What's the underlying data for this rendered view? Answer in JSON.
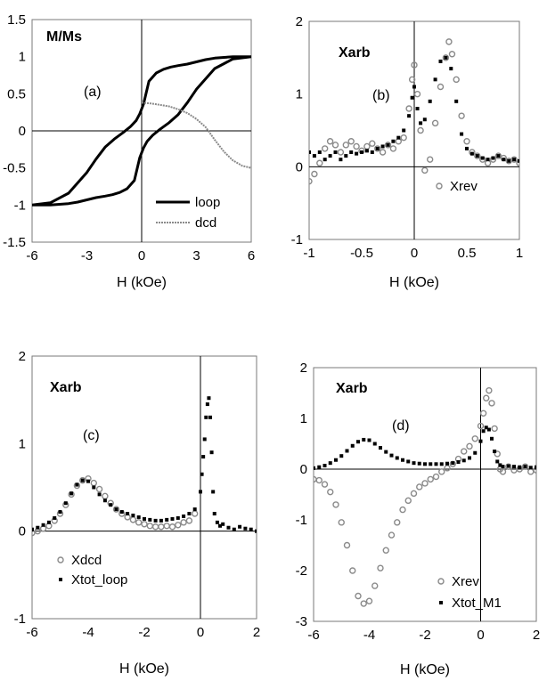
{
  "colors": {
    "dark": "#000000",
    "light": "#8a8a8a",
    "background": "#ffffff"
  },
  "chart_data": [
    {
      "id": "a",
      "type": "line",
      "panel_label": "(a)",
      "ylabel": "M/Ms",
      "xlabel": "H (kOe)",
      "xlim": [
        -6,
        6
      ],
      "ylim": [
        -1.5,
        1.5
      ],
      "xticks": [
        -6,
        -3,
        0,
        3,
        6
      ],
      "yticks": [
        -1.5,
        -1,
        -0.5,
        0,
        0.5,
        1,
        1.5
      ],
      "grid": false,
      "legend_position": "bottom-right",
      "series": [
        {
          "name": "loop",
          "style": "line-dark",
          "x": [
            -6,
            -5,
            -4,
            -3,
            -2.5,
            -2,
            -1.5,
            -1,
            -0.6,
            -0.3,
            -0.1,
            0.1,
            0.4,
            0.8,
            1.2,
            1.6,
            2,
            2.5,
            3,
            3.5,
            4,
            4.5,
            5,
            5.5,
            6,
            5,
            4,
            3,
            2.5,
            2,
            1.5,
            1,
            0.6,
            0.3,
            0.1,
            -0.1,
            -0.4,
            -0.8,
            -1.2,
            -1.6,
            -2,
            -2.5,
            -3,
            -3.5,
            -4,
            -4.5,
            -5,
            -5.5,
            -6
          ],
          "y": [
            -1,
            -0.97,
            -0.84,
            -0.56,
            -0.38,
            -0.22,
            -0.11,
            -0.02,
            0.06,
            0.14,
            0.23,
            0.36,
            0.67,
            0.78,
            0.83,
            0.86,
            0.88,
            0.9,
            0.93,
            0.96,
            0.98,
            0.99,
            1,
            1,
            1,
            0.97,
            0.84,
            0.56,
            0.38,
            0.22,
            0.11,
            0.02,
            -0.06,
            -0.14,
            -0.23,
            -0.36,
            -0.67,
            -0.78,
            -0.83,
            -0.86,
            -0.88,
            -0.9,
            -0.93,
            -0.96,
            -0.98,
            -0.99,
            -1,
            -1,
            -1
          ]
        },
        {
          "name": "dcd",
          "style": "line-light",
          "x": [
            0,
            0.5,
            1,
            1.5,
            2,
            2.5,
            3,
            3.5,
            4,
            4.5,
            5,
            5.5,
            6
          ],
          "y": [
            0.38,
            0.37,
            0.35,
            0.33,
            0.29,
            0.24,
            0.16,
            0.05,
            -0.12,
            -0.28,
            -0.4,
            -0.47,
            -0.5
          ]
        }
      ]
    },
    {
      "id": "b",
      "type": "scatter",
      "panel_label": "(b)",
      "ylabel": "Xarb",
      "xlabel": "H (kOe)",
      "xlim": [
        -1,
        1
      ],
      "ylim": [
        -1,
        2
      ],
      "xticks": [
        -1,
        -0.5,
        0,
        0.5,
        1
      ],
      "yticks": [
        -1,
        0,
        1,
        2
      ],
      "grid": false,
      "legend_position": "bottom-right",
      "series": [
        {
          "name": "Xrev",
          "style": "marker-light",
          "x": [
            -1,
            -0.95,
            -0.9,
            -0.85,
            -0.8,
            -0.75,
            -0.7,
            -0.65,
            -0.6,
            -0.55,
            -0.5,
            -0.45,
            -0.4,
            -0.35,
            -0.3,
            -0.25,
            -0.2,
            -0.15,
            -0.1,
            -0.05,
            -0.02,
            0,
            0.03,
            0.06,
            0.1,
            0.15,
            0.2,
            0.25,
            0.3,
            0.33,
            0.36,
            0.4,
            0.45,
            0.5,
            0.55,
            0.6,
            0.65,
            0.7,
            0.75,
            0.8,
            0.85,
            0.9,
            0.95,
            1
          ],
          "y": [
            -0.2,
            -0.1,
            0.05,
            0.25,
            0.35,
            0.3,
            0.2,
            0.3,
            0.35,
            0.28,
            0.22,
            0.28,
            0.32,
            0.25,
            0.2,
            0.3,
            0.25,
            0.35,
            0.4,
            0.8,
            1.2,
            1.4,
            1.0,
            0.5,
            -0.05,
            0.1,
            0.6,
            1.1,
            1.5,
            1.72,
            1.55,
            1.2,
            0.7,
            0.35,
            0.2,
            0.15,
            0.1,
            0.05,
            0.1,
            0.15,
            0.12,
            0.08,
            0.1,
            0.05
          ]
        },
        {
          "name": "",
          "style": "marker-dark",
          "x": [
            -1,
            -0.95,
            -0.9,
            -0.85,
            -0.8,
            -0.75,
            -0.7,
            -0.65,
            -0.6,
            -0.55,
            -0.5,
            -0.45,
            -0.4,
            -0.35,
            -0.3,
            -0.25,
            -0.2,
            -0.15,
            -0.1,
            -0.05,
            -0.02,
            0,
            0.03,
            0.06,
            0.1,
            0.15,
            0.2,
            0.25,
            0.3,
            0.35,
            0.4,
            0.45,
            0.5,
            0.55,
            0.6,
            0.65,
            0.7,
            0.75,
            0.8,
            0.85,
            0.9,
            0.95,
            1
          ],
          "y": [
            0.2,
            0.15,
            0.2,
            0.1,
            0.15,
            0.2,
            0.1,
            0.15,
            0.2,
            0.18,
            0.2,
            0.22,
            0.2,
            0.25,
            0.28,
            0.3,
            0.35,
            0.4,
            0.5,
            0.7,
            0.95,
            1.1,
            0.8,
            0.6,
            0.65,
            0.9,
            1.2,
            1.45,
            1.5,
            1.35,
            0.9,
            0.45,
            0.25,
            0.18,
            0.15,
            0.12,
            0.1,
            0.12,
            0.15,
            0.1,
            0.08,
            0.1,
            0.08
          ]
        }
      ]
    },
    {
      "id": "c",
      "type": "scatter",
      "panel_label": "(c)",
      "ylabel": "Xarb",
      "xlabel": "H (kOe)",
      "xlim": [
        -6,
        2
      ],
      "ylim": [
        -1,
        2
      ],
      "xticks": [
        -6,
        -4,
        -2,
        0,
        2
      ],
      "yticks": [
        -1,
        0,
        1,
        2
      ],
      "grid": false,
      "legend_position": "bottom-left",
      "series": [
        {
          "name": "Xdcd",
          "style": "marker-light",
          "x": [
            -6,
            -5.8,
            -5.6,
            -5.4,
            -5.2,
            -5,
            -4.8,
            -4.6,
            -4.4,
            -4.2,
            -4,
            -3.8,
            -3.6,
            -3.4,
            -3.2,
            -3,
            -2.8,
            -2.6,
            -2.4,
            -2.2,
            -2,
            -1.8,
            -1.6,
            -1.4,
            -1.2,
            -1,
            -0.8,
            -0.6,
            -0.4,
            -0.2
          ],
          "y": [
            -0.02,
            0.0,
            0.03,
            0.06,
            0.12,
            0.2,
            0.3,
            0.42,
            0.52,
            0.58,
            0.6,
            0.55,
            0.48,
            0.4,
            0.32,
            0.25,
            0.2,
            0.16,
            0.13,
            0.1,
            0.08,
            0.06,
            0.05,
            0.05,
            0.06,
            0.05,
            0.07,
            0.1,
            0.12,
            0.2
          ]
        },
        {
          "name": "Xtot_loop",
          "style": "marker-dark",
          "x": [
            -6,
            -5.8,
            -5.6,
            -5.4,
            -5.2,
            -5,
            -4.8,
            -4.6,
            -4.4,
            -4.2,
            -4,
            -3.8,
            -3.6,
            -3.4,
            -3.2,
            -3,
            -2.8,
            -2.6,
            -2.4,
            -2.2,
            -2,
            -1.8,
            -1.6,
            -1.4,
            -1.2,
            -1,
            -0.8,
            -0.6,
            -0.4,
            -0.2,
            0,
            0.05,
            0.1,
            0.15,
            0.2,
            0.25,
            0.3,
            0.35,
            0.4,
            0.45,
            0.5,
            0.6,
            0.7,
            0.8,
            1,
            1.2,
            1.4,
            1.6,
            1.8,
            2
          ],
          "y": [
            0.02,
            0.04,
            0.07,
            0.1,
            0.15,
            0.22,
            0.32,
            0.43,
            0.53,
            0.58,
            0.57,
            0.5,
            0.42,
            0.35,
            0.3,
            0.25,
            0.22,
            0.2,
            0.18,
            0.16,
            0.14,
            0.13,
            0.12,
            0.12,
            0.13,
            0.14,
            0.15,
            0.17,
            0.2,
            0.25,
            0.45,
            0.65,
            0.85,
            1.05,
            1.3,
            1.45,
            1.52,
            1.3,
            0.9,
            0.45,
            0.2,
            0.1,
            0.06,
            0.08,
            0.04,
            0.02,
            0.05,
            0.03,
            0.02,
            0.0
          ]
        }
      ]
    },
    {
      "id": "d",
      "type": "scatter",
      "panel_label": "(d)",
      "ylabel": "Xarb",
      "xlabel": "H (kOe)",
      "xlim": [
        -6,
        2
      ],
      "ylim": [
        -3,
        2
      ],
      "xticks": [
        -6,
        -4,
        -2,
        0,
        2
      ],
      "yticks": [
        -3,
        -2,
        -1,
        0,
        1,
        2
      ],
      "grid": false,
      "legend_position": "bottom-right",
      "series": [
        {
          "name": "Xrev",
          "style": "marker-light",
          "x": [
            -6,
            -5.8,
            -5.6,
            -5.4,
            -5.2,
            -5,
            -4.8,
            -4.6,
            -4.4,
            -4.2,
            -4,
            -3.8,
            -3.6,
            -3.4,
            -3.2,
            -3,
            -2.8,
            -2.6,
            -2.4,
            -2.2,
            -2,
            -1.8,
            -1.6,
            -1.4,
            -1.2,
            -1,
            -0.8,
            -0.6,
            -0.4,
            -0.2,
            0,
            0.1,
            0.2,
            0.3,
            0.4,
            0.5,
            0.6,
            0.7,
            0.8,
            1,
            1.2,
            1.4,
            1.6,
            1.8,
            2
          ],
          "y": [
            -0.2,
            -0.22,
            -0.3,
            -0.45,
            -0.7,
            -1.05,
            -1.5,
            -2.0,
            -2.5,
            -2.65,
            -2.6,
            -2.3,
            -1.95,
            -1.6,
            -1.3,
            -1.05,
            -0.8,
            -0.62,
            -0.48,
            -0.35,
            -0.28,
            -0.2,
            -0.15,
            -0.05,
            0.02,
            0.1,
            0.2,
            0.35,
            0.45,
            0.6,
            0.85,
            1.1,
            1.4,
            1.55,
            1.3,
            0.8,
            0.3,
            0.0,
            -0.05,
            0.05,
            -0.02,
            0.0,
            0.05,
            -0.05,
            -0.02
          ]
        },
        {
          "name": "Xtot_M1",
          "style": "marker-dark",
          "x": [
            -6,
            -5.8,
            -5.6,
            -5.4,
            -5.2,
            -5,
            -4.8,
            -4.6,
            -4.4,
            -4.2,
            -4,
            -3.8,
            -3.6,
            -3.4,
            -3.2,
            -3,
            -2.8,
            -2.6,
            -2.4,
            -2.2,
            -2,
            -1.8,
            -1.6,
            -1.4,
            -1.2,
            -1,
            -0.8,
            -0.6,
            -0.4,
            -0.2,
            0,
            0.1,
            0.2,
            0.3,
            0.4,
            0.5,
            0.6,
            0.7,
            0.8,
            1,
            1.2,
            1.4,
            1.6,
            1.8,
            2
          ],
          "y": [
            0.02,
            0.04,
            0.07,
            0.12,
            0.18,
            0.26,
            0.36,
            0.46,
            0.54,
            0.58,
            0.57,
            0.5,
            0.42,
            0.34,
            0.27,
            0.22,
            0.18,
            0.15,
            0.12,
            0.11,
            0.1,
            0.1,
            0.1,
            0.1,
            0.11,
            0.12,
            0.14,
            0.17,
            0.22,
            0.32,
            0.55,
            0.75,
            0.82,
            0.78,
            0.6,
            0.35,
            0.15,
            0.08,
            0.05,
            0.06,
            0.05,
            0.04,
            0.05,
            0.03,
            0.04
          ]
        }
      ]
    }
  ]
}
